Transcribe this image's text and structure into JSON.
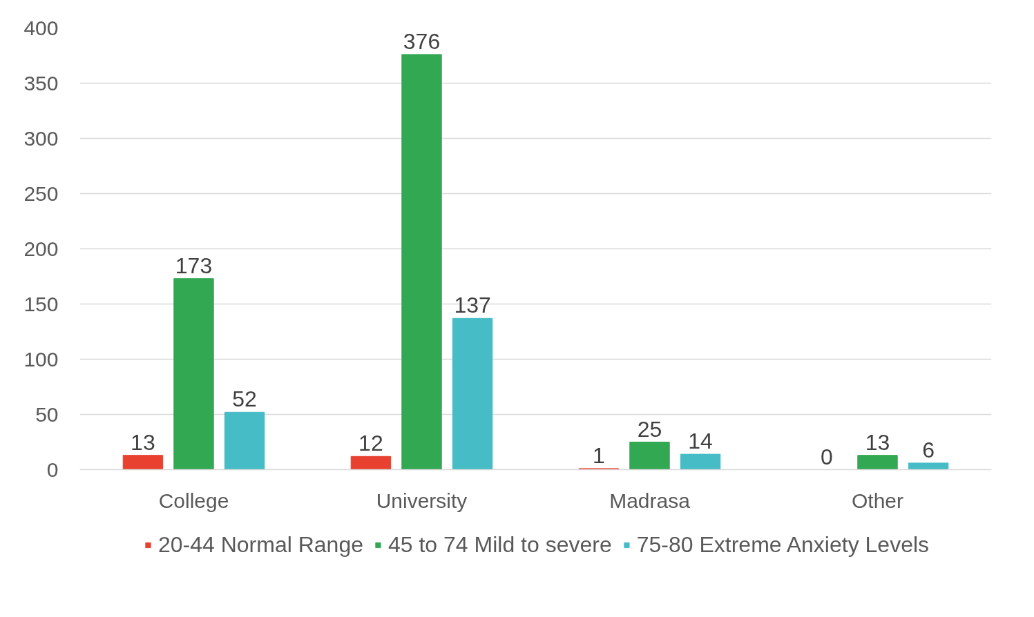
{
  "chart_data": {
    "type": "bar",
    "categories": [
      "College",
      "University",
      "Madrasa",
      "Other"
    ],
    "series": [
      {
        "name": "20-44 Normal Range",
        "color": "#e8412f",
        "values": [
          13,
          12,
          1,
          0
        ]
      },
      {
        "name": "45 to 74 Mild to severe",
        "color": "#33a852",
        "values": [
          173,
          376,
          25,
          13
        ]
      },
      {
        "name": "75-80 Extreme Anxiety Levels",
        "color": "#46bcc6",
        "values": [
          52,
          137,
          14,
          6
        ]
      }
    ],
    "ylim": [
      0,
      400
    ],
    "yticks": [
      0,
      50,
      100,
      150,
      200,
      250,
      300,
      350,
      400
    ],
    "grid": "y",
    "legend": "bottom",
    "data_labels": true
  }
}
